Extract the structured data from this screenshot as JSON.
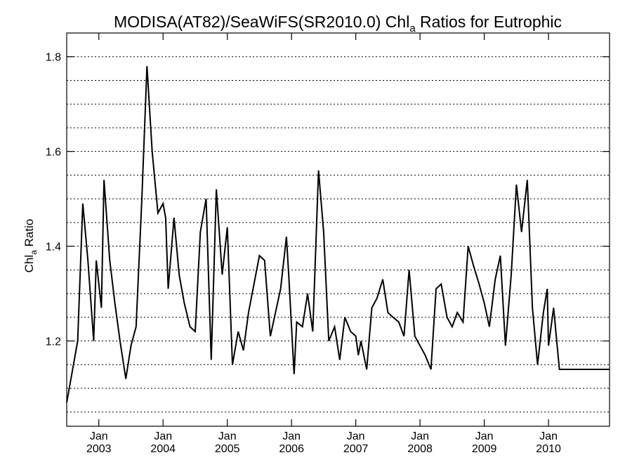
{
  "chart_data": {
    "type": "line",
    "title": {
      "prefix": "MODISA(AT82)/SeaWiFS(SR2010.0)  Chl",
      "subscript": "a",
      "suffix": " Ratios for Eutrophic"
    },
    "ylabel": {
      "main": "Chl",
      "subscript": "a",
      "suffix": " Ratio"
    },
    "xlabel": "",
    "xlim": [
      2002.5,
      2010.95
    ],
    "ylim": [
      1.02,
      1.85
    ],
    "y_ticks": [
      1.2,
      1.4,
      1.6,
      1.8
    ],
    "y_tick_labels": [
      "1.2",
      "1.4",
      "1.6",
      "1.8"
    ],
    "grid_lines_y": [
      1.05,
      1.1,
      1.15,
      1.2,
      1.25,
      1.3,
      1.35,
      1.4,
      1.45,
      1.5,
      1.55,
      1.6,
      1.65,
      1.7,
      1.75,
      1.8
    ],
    "grid": true,
    "grid_style": "dotted",
    "x_ticks": [
      {
        "pos": 2003.0,
        "month": "Jan",
        "year": "2003"
      },
      {
        "pos": 2004.0,
        "month": "Jan",
        "year": "2004"
      },
      {
        "pos": 2005.0,
        "month": "Jan",
        "year": "2005"
      },
      {
        "pos": 2006.0,
        "month": "Jan",
        "year": "2006"
      },
      {
        "pos": 2007.0,
        "month": "Jan",
        "year": "2007"
      },
      {
        "pos": 2008.0,
        "month": "Jan",
        "year": "2008"
      },
      {
        "pos": 2009.0,
        "month": "Jan",
        "year": "2009"
      },
      {
        "pos": 2010.0,
        "month": "Jan",
        "year": "2010"
      }
    ],
    "series": [
      {
        "color": "#000000",
        "x": [
          2002.5,
          2002.67,
          2002.75,
          2002.83,
          2002.92,
          2002.96,
          2003.04,
          2003.08,
          2003.17,
          2003.25,
          2003.33,
          2003.42,
          2003.5,
          2003.58,
          2003.67,
          2003.75,
          2003.83,
          2003.92,
          2004.0,
          2004.04,
          2004.08,
          2004.17,
          2004.25,
          2004.33,
          2004.42,
          2004.5,
          2004.58,
          2004.67,
          2004.75,
          2004.83,
          2004.92,
          2005.0,
          2005.08,
          2005.17,
          2005.25,
          2005.33,
          2005.5,
          2005.58,
          2005.67,
          2005.75,
          2005.83,
          2005.92,
          2005.96,
          2006.04,
          2006.08,
          2006.17,
          2006.25,
          2006.33,
          2006.42,
          2006.5,
          2006.58,
          2006.67,
          2006.75,
          2006.83,
          2006.92,
          2007.0,
          2007.04,
          2007.08,
          2007.17,
          2007.25,
          2007.33,
          2007.42,
          2007.5,
          2007.58,
          2007.67,
          2007.75,
          2007.83,
          2007.92,
          2008.0,
          2008.08,
          2008.17,
          2008.25,
          2008.33,
          2008.42,
          2008.5,
          2008.58,
          2008.67,
          2008.75,
          2008.83,
          2008.92,
          2009.0,
          2009.08,
          2009.17,
          2009.25,
          2009.33,
          2009.42,
          2009.5,
          2009.58,
          2009.67,
          2009.75,
          2009.83,
          2009.92,
          2009.98,
          2010.0,
          2010.08,
          2010.17,
          2010.25,
          2010.33,
          2010.42,
          2010.5,
          2010.58,
          2010.67,
          2010.75,
          2010.83,
          2010.92,
          2010.95
        ],
        "y": [
          1.07,
          1.2,
          1.49,
          1.37,
          1.2,
          1.37,
          1.27,
          1.54,
          1.37,
          1.28,
          1.2,
          1.12,
          1.19,
          1.23,
          1.5,
          1.78,
          1.6,
          1.47,
          1.49,
          1.46,
          1.31,
          1.46,
          1.34,
          1.28,
          1.23,
          1.22,
          1.43,
          1.5,
          1.16,
          1.52,
          1.34,
          1.44,
          1.15,
          1.22,
          1.18,
          1.26,
          1.38,
          1.37,
          1.21,
          1.26,
          1.31,
          1.42,
          1.33,
          1.13,
          1.24,
          1.23,
          1.3,
          1.22,
          1.56,
          1.43,
          1.2,
          1.23,
          1.16,
          1.25,
          1.22,
          1.21,
          1.17,
          1.2,
          1.14,
          1.27,
          1.29,
          1.33,
          1.26,
          1.25,
          1.24,
          1.21,
          1.35,
          1.21,
          1.19,
          1.17,
          1.14,
          1.31,
          1.32,
          1.25,
          1.23,
          1.26,
          1.24,
          1.4,
          1.36,
          1.32,
          1.28,
          1.23,
          1.33,
          1.38,
          1.19,
          1.34,
          1.53,
          1.43,
          1.54,
          1.27,
          1.15,
          1.26,
          1.31,
          1.19,
          1.27,
          1.14,
          1.14,
          1.14,
          1.14,
          1.14,
          1.14,
          1.14,
          1.14,
          1.14,
          1.14,
          1.14
        ]
      }
    ]
  }
}
